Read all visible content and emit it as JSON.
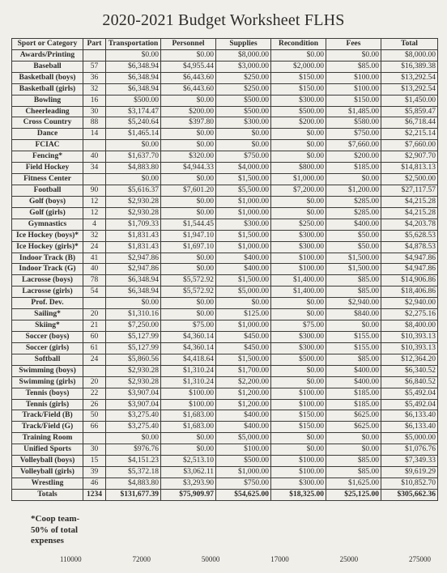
{
  "title": "2020-2021 Budget Worksheet FLHS",
  "headers": {
    "sport": "Sport or Category",
    "part": "Part",
    "transportation": "Transportation",
    "personnel": "Personnel",
    "supplies": "Supplies",
    "recondition": "Recondition",
    "fees": "Fees",
    "total": "Total"
  },
  "rows": [
    {
      "label": "Awards/Printing",
      "part": "",
      "transportation": "$0.00",
      "personnel": "$0.00",
      "supplies": "$8,000.00",
      "recondition": "$0.00",
      "fees": "$0.00",
      "total": "$8,000.00"
    },
    {
      "label": "Baseball",
      "part": "57",
      "transportation": "$6,348.94",
      "personnel": "$4,955.44",
      "supplies": "$3,000.00",
      "recondition": "$2,000.00",
      "fees": "$85.00",
      "total": "$16,389.38"
    },
    {
      "label": "Basketball (boys)",
      "part": "36",
      "transportation": "$6,348.94",
      "personnel": "$6,443.60",
      "supplies": "$250.00",
      "recondition": "$150.00",
      "fees": "$100.00",
      "total": "$13,292.54"
    },
    {
      "label": "Basketball (girls)",
      "part": "32",
      "transportation": "$6,348.94",
      "personnel": "$6,443.60",
      "supplies": "$250.00",
      "recondition": "$150.00",
      "fees": "$100.00",
      "total": "$13,292.54"
    },
    {
      "label": "Bowling",
      "part": "16",
      "transportation": "$500.00",
      "personnel": "$0.00",
      "supplies": "$500.00",
      "recondition": "$300.00",
      "fees": "$150.00",
      "total": "$1,450.00"
    },
    {
      "label": "Cheerleading",
      "part": "30",
      "transportation": "$3,174.47",
      "personnel": "$200.00",
      "supplies": "$500.00",
      "recondition": "$500.00",
      "fees": "$1,485.00",
      "total": "$5,859.47"
    },
    {
      "label": "Cross Country",
      "part": "88",
      "transportation": "$5,240.64",
      "personnel": "$397.80",
      "supplies": "$300.00",
      "recondition": "$200.00",
      "fees": "$580.00",
      "total": "$6,718.44"
    },
    {
      "label": "Dance",
      "part": "14",
      "transportation": "$1,465.14",
      "personnel": "$0.00",
      "supplies": "$0.00",
      "recondition": "$0.00",
      "fees": "$750.00",
      "total": "$2,215.14"
    },
    {
      "label": "FCIAC",
      "part": "",
      "transportation": "$0.00",
      "personnel": "$0.00",
      "supplies": "$0.00",
      "recondition": "$0.00",
      "fees": "$7,660.00",
      "total": "$7,660.00"
    },
    {
      "label": "Fencing*",
      "part": "40",
      "transportation": "$1,637.70",
      "personnel": "$320.00",
      "supplies": "$750.00",
      "recondition": "$0.00",
      "fees": "$200.00",
      "total": "$2,907.70"
    },
    {
      "label": "Field Hockey",
      "part": "34",
      "transportation": "$4,883.80",
      "personnel": "$4,944.33",
      "supplies": "$4,000.00",
      "recondition": "$800.00",
      "fees": "$185.00",
      "total": "$14,813.13"
    },
    {
      "label": "Fitness Center",
      "part": "",
      "transportation": "$0.00",
      "personnel": "$0.00",
      "supplies": "$1,500.00",
      "recondition": "$1,000.00",
      "fees": "$0.00",
      "total": "$2,500.00"
    },
    {
      "label": "Football",
      "part": "90",
      "transportation": "$5,616.37",
      "personnel": "$7,601.20",
      "supplies": "$5,500.00",
      "recondition": "$7,200.00",
      "fees": "$1,200.00",
      "total": "$27,117.57"
    },
    {
      "label": "Golf (boys)",
      "part": "12",
      "transportation": "$2,930.28",
      "personnel": "$0.00",
      "supplies": "$1,000.00",
      "recondition": "$0.00",
      "fees": "$285.00",
      "total": "$4,215.28"
    },
    {
      "label": "Golf (girls)",
      "part": "12",
      "transportation": "$2,930.28",
      "personnel": "$0.00",
      "supplies": "$1,000.00",
      "recondition": "$0.00",
      "fees": "$285.00",
      "total": "$4,215.28"
    },
    {
      "label": "Gymnastics",
      "part": "4",
      "transportation": "$1,709.33",
      "personnel": "$1,544.45",
      "supplies": "$300.00",
      "recondition": "$250.00",
      "fees": "$400.00",
      "total": "$4,203.78"
    },
    {
      "label": "Ice Hockey (boys)*",
      "part": "32",
      "transportation": "$1,831.43",
      "personnel": "$1,947.10",
      "supplies": "$1,500.00",
      "recondition": "$300.00",
      "fees": "$50.00",
      "total": "$5,628.53"
    },
    {
      "label": "Ice Hockey (girls)*",
      "part": "24",
      "transportation": "$1,831.43",
      "personnel": "$1,697.10",
      "supplies": "$1,000.00",
      "recondition": "$300.00",
      "fees": "$50.00",
      "total": "$4,878.53"
    },
    {
      "label": "Indoor Track (B)",
      "part": "41",
      "transportation": "$2,947.86",
      "personnel": "$0.00",
      "supplies": "$400.00",
      "recondition": "$100.00",
      "fees": "$1,500.00",
      "total": "$4,947.86"
    },
    {
      "label": "Indoor Track (G)",
      "part": "40",
      "transportation": "$2,947.86",
      "personnel": "$0.00",
      "supplies": "$400.00",
      "recondition": "$100.00",
      "fees": "$1,500.00",
      "total": "$4,947.86"
    },
    {
      "label": "Lacrosse (boys)",
      "part": "78",
      "transportation": "$6,348.94",
      "personnel": "$5,572.92",
      "supplies": "$1,500.00",
      "recondition": "$1,400.00",
      "fees": "$85.00",
      "total": "$14,906.86"
    },
    {
      "label": "Lacrosse (girls)",
      "part": "54",
      "transportation": "$6,348.94",
      "personnel": "$5,572.92",
      "supplies": "$5,000.00",
      "recondition": "$1,400.00",
      "fees": "$85.00",
      "total": "$18,406.86"
    },
    {
      "label": "Prof. Dev.",
      "part": "",
      "transportation": "$0.00",
      "personnel": "$0.00",
      "supplies": "$0.00",
      "recondition": "$0.00",
      "fees": "$2,940.00",
      "total": "$2,940.00"
    },
    {
      "label": "Sailing*",
      "part": "20",
      "transportation": "$1,310.16",
      "personnel": "$0.00",
      "supplies": "$125.00",
      "recondition": "$0.00",
      "fees": "$840.00",
      "total": "$2,275.16"
    },
    {
      "label": "Skiing*",
      "part": "21",
      "transportation": "$7,250.00",
      "personnel": "$75.00",
      "supplies": "$1,000.00",
      "recondition": "$75.00",
      "fees": "$0.00",
      "total": "$8,400.00"
    },
    {
      "label": "Soccer (boys)",
      "part": "60",
      "transportation": "$5,127.99",
      "personnel": "$4,360.14",
      "supplies": "$450.00",
      "recondition": "$300.00",
      "fees": "$155.00",
      "total": "$10,393.13"
    },
    {
      "label": "Soccer (girls)",
      "part": "61",
      "transportation": "$5,127.99",
      "personnel": "$4,360.14",
      "supplies": "$450.00",
      "recondition": "$300.00",
      "fees": "$155.00",
      "total": "$10,393.13"
    },
    {
      "label": "Softball",
      "part": "24",
      "transportation": "$5,860.56",
      "personnel": "$4,418.64",
      "supplies": "$1,500.00",
      "recondition": "$500.00",
      "fees": "$85.00",
      "total": "$12,364.20"
    },
    {
      "label": "Swimming (boys)",
      "part": "",
      "transportation": "$2,930.28",
      "personnel": "$1,310.24",
      "supplies": "$1,700.00",
      "recondition": "$0.00",
      "fees": "$400.00",
      "total": "$6,340.52"
    },
    {
      "label": "Swimming (girls)",
      "part": "20",
      "transportation": "$2,930.28",
      "personnel": "$1,310.24",
      "supplies": "$2,200.00",
      "recondition": "$0.00",
      "fees": "$400.00",
      "total": "$6,840.52"
    },
    {
      "label": "Tennis (boys)",
      "part": "22",
      "transportation": "$3,907.04",
      "personnel": "$100.00",
      "supplies": "$1,200.00",
      "recondition": "$100.00",
      "fees": "$185.00",
      "total": "$5,492.04"
    },
    {
      "label": "Tennis (girls)",
      "part": "26",
      "transportation": "$3,907.04",
      "personnel": "$100.00",
      "supplies": "$1,200.00",
      "recondition": "$100.00",
      "fees": "$185.00",
      "total": "$5,492.04"
    },
    {
      "label": "Track/Field (B)",
      "part": "50",
      "transportation": "$3,275.40",
      "personnel": "$1,683.00",
      "supplies": "$400.00",
      "recondition": "$150.00",
      "fees": "$625.00",
      "total": "$6,133.40"
    },
    {
      "label": "Track/Field (G)",
      "part": "66",
      "transportation": "$3,275.40",
      "personnel": "$1,683.00",
      "supplies": "$400.00",
      "recondition": "$150.00",
      "fees": "$625.00",
      "total": "$6,133.40"
    },
    {
      "label": "Training Room",
      "part": "",
      "transportation": "$0.00",
      "personnel": "$0.00",
      "supplies": "$5,000.00",
      "recondition": "$0.00",
      "fees": "$0.00",
      "total": "$5,000.00"
    },
    {
      "label": "Unified Sports",
      "part": "30",
      "transportation": "$976.76",
      "personnel": "$0.00",
      "supplies": "$100.00",
      "recondition": "$0.00",
      "fees": "$0.00",
      "total": "$1,076.76"
    },
    {
      "label": "Volleyball (boys)",
      "part": "15",
      "transportation": "$4,151.23",
      "personnel": "$2,513.10",
      "supplies": "$500.00",
      "recondition": "$100.00",
      "fees": "$85.00",
      "total": "$7,349.33"
    },
    {
      "label": "Volleyball (girls)",
      "part": "39",
      "transportation": "$5,372.18",
      "personnel": "$3,062.11",
      "supplies": "$1,000.00",
      "recondition": "$100.00",
      "fees": "$85.00",
      "total": "$9,619.29"
    },
    {
      "label": "Wrestling",
      "part": "46",
      "transportation": "$4,883.80",
      "personnel": "$3,293.90",
      "supplies": "$750.00",
      "recondition": "$300.00",
      "fees": "$1,625.00",
      "total": "$10,852.70"
    }
  ],
  "totals": {
    "label": "Totals",
    "part": "1234",
    "transportation": "$131,677.39",
    "personnel": "$75,909.97",
    "supplies": "$54,625.00",
    "recondition": "$18,325.00",
    "fees": "$25,125.00",
    "total": "$305,662.36"
  },
  "footnote_l1": "*Coop team-",
  "footnote_l2": "50% of total",
  "footnote_l3": "expenses",
  "axis": [
    "110000",
    "72000",
    "50000",
    "17000",
    "25000",
    "275000"
  ]
}
